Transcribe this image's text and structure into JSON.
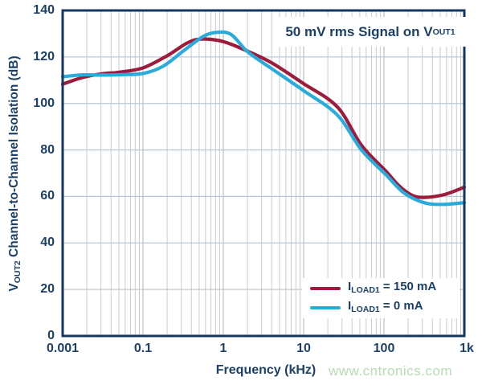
{
  "watermark": "www.cntronics.com",
  "colors": {
    "navy_text": "#1c4068",
    "frame": "#15365f",
    "grid_minor": "#cbcbcf",
    "grid_major": "#b7c0cb",
    "grid_horizontal": "#bdc8d3",
    "series_red": "#9d1c3b",
    "series_cyan": "#2aabdc",
    "watermark_green": "#b5deb2",
    "background": "#ffffff"
  },
  "chart_data": {
    "type": "line",
    "x_scale": "log",
    "grid": true,
    "annotation": {
      "prefix": "50 mV rms Signal on V",
      "sub": "OUT1"
    },
    "xlabel": "Frequency (kHz)",
    "ylabel_parts": {
      "lead": "V",
      "sub": "OUT2",
      "rest": " Channel-to-Channel Isolation (dB)"
    },
    "x_tick_labels": [
      "0.001",
      "0.1",
      "1",
      "10",
      "100",
      "1k"
    ],
    "y_tick_labels": [
      "140",
      "120",
      "100",
      "80",
      "60",
      "40",
      "20",
      "0"
    ],
    "ylim": [
      0,
      140
    ],
    "y_step_db": 20,
    "legend_position": "inside-bottom-right",
    "series": [
      {
        "label_lead": "I",
        "label_sub": "LOAD1",
        "label_rest": " = 150 mA",
        "color": "#9d1c3b",
        "db_at_x_ticks": [
          108.5,
          115.5,
          126.5,
          108.5,
          72,
          64
        ],
        "peak_db": 127.7,
        "trough_db": 59.6,
        "points_u_db": [
          [
            0.0,
            108.3
          ],
          [
            0.05,
            111.2
          ],
          [
            0.1,
            112.8
          ],
          [
            0.14,
            113.4
          ],
          [
            0.2,
            115.3
          ],
          [
            0.26,
            120.5
          ],
          [
            0.31,
            126.0
          ],
          [
            0.345,
            127.7
          ],
          [
            0.4,
            126.6
          ],
          [
            0.46,
            122.5
          ],
          [
            0.52,
            117.5
          ],
          [
            0.6,
            108.5
          ],
          [
            0.684,
            98.5
          ],
          [
            0.744,
            82.0
          ],
          [
            0.804,
            71.0
          ],
          [
            0.838,
            64.5
          ],
          [
            0.87,
            60.5
          ],
          [
            0.9,
            59.6
          ],
          [
            0.95,
            60.8
          ],
          [
            1.0,
            64.0
          ]
        ]
      },
      {
        "label_lead": "I",
        "label_sub": "LOAD1",
        "label_rest": " = 0 mA",
        "color": "#2aabdc",
        "db_at_x_ticks": [
          111.5,
          112.9,
          130.0,
          105.5,
          70,
          57.3
        ],
        "peak_db": 130.6,
        "trough_db": 56.5,
        "points_u_db": [
          [
            0.0,
            111.5
          ],
          [
            0.05,
            112.3
          ],
          [
            0.1,
            112.2
          ],
          [
            0.15,
            112.4
          ],
          [
            0.2,
            112.9
          ],
          [
            0.25,
            116.0
          ],
          [
            0.3,
            122.5
          ],
          [
            0.35,
            128.8
          ],
          [
            0.385,
            130.6
          ],
          [
            0.42,
            129.6
          ],
          [
            0.46,
            122.3
          ],
          [
            0.52,
            115.0
          ],
          [
            0.6,
            105.5
          ],
          [
            0.684,
            95.0
          ],
          [
            0.744,
            80.0
          ],
          [
            0.804,
            69.5
          ],
          [
            0.85,
            61.5
          ],
          [
            0.9,
            57.3
          ],
          [
            0.945,
            56.6
          ],
          [
            1.0,
            57.3
          ]
        ]
      }
    ]
  }
}
